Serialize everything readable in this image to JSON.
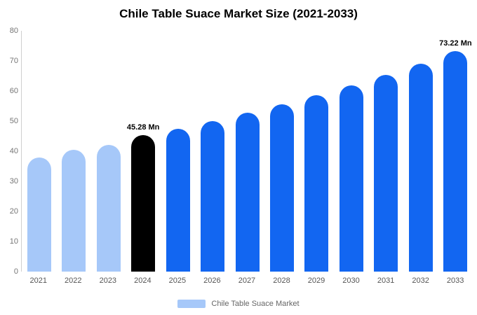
{
  "chart_data": {
    "type": "bar",
    "title": "Chile Table Suace Market Size (2021-2033)",
    "categories": [
      "2021",
      "2022",
      "2023",
      "2024",
      "2025",
      "2026",
      "2027",
      "2028",
      "2029",
      "2030",
      "2031",
      "2032",
      "2033"
    ],
    "values": [
      37.9,
      40.4,
      42.2,
      45.28,
      47.4,
      49.9,
      52.8,
      55.5,
      58.5,
      61.8,
      65.4,
      69.1,
      73.22
    ],
    "colors": [
      "#a6c8f9",
      "#a6c8f9",
      "#a6c8f9",
      "#000000",
      "#1266f1",
      "#1266f1",
      "#1266f1",
      "#1266f1",
      "#1266f1",
      "#1266f1",
      "#1266f1",
      "#1266f1",
      "#1266f1"
    ],
    "annotations": [
      {
        "category": "2024",
        "text": "45.28 Mn"
      },
      {
        "category": "2033",
        "text": "73.22 Mn"
      }
    ],
    "xlabel": "",
    "ylabel": "",
    "ylim": [
      0,
      80
    ],
    "yticks": [
      0,
      10,
      20,
      30,
      40,
      50,
      60,
      70,
      80
    ],
    "grid": false,
    "legend": {
      "position": "bottom",
      "label": "Chile Table Suace Market",
      "swatch_color": "#a6c8f9"
    }
  }
}
